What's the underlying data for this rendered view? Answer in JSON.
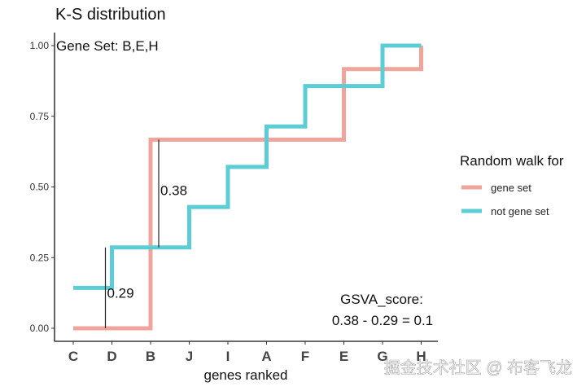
{
  "chart_data": {
    "type": "line",
    "step": true,
    "title": "K-S distribution",
    "xlabel": "genes ranked",
    "ylabel": "",
    "categories": [
      "C",
      "D",
      "B",
      "J",
      "I",
      "A",
      "F",
      "E",
      "G",
      "H"
    ],
    "ylim": [
      0,
      1
    ],
    "yticks": [
      0.0,
      0.25,
      0.5,
      0.75,
      1.0
    ],
    "ytick_labels": [
      "0.00",
      "0.25",
      "0.50",
      "0.75",
      "1.00"
    ],
    "grid": false,
    "legend_title": "Random walk for",
    "legend_position": "right",
    "series": [
      {
        "name": "gene set",
        "color": "#F0A59C",
        "values": [
          0.0,
          0.0,
          0.667,
          0.667,
          0.667,
          0.667,
          0.667,
          0.917,
          0.917,
          1.0
        ]
      },
      {
        "name": "not gene set",
        "color": "#5CCDD4",
        "values": [
          0.143,
          0.286,
          0.286,
          0.429,
          0.571,
          0.714,
          0.857,
          0.857,
          1.0,
          1.0
        ]
      }
    ],
    "annotations": {
      "gene_set_text": "Gene Set: B,E,H",
      "diff_low": {
        "label": "0.29",
        "x_category": "D",
        "y_from": 0.0,
        "y_to": 0.286
      },
      "diff_high": {
        "label": "0.38",
        "x_category": "B",
        "y_from": 0.286,
        "y_to": 0.667
      },
      "score_title": "GSVA_score:",
      "score_formula": "0.38 - 0.29 = 0.1"
    }
  },
  "watermark": "掘金技术社区 @ 布客飞龙"
}
